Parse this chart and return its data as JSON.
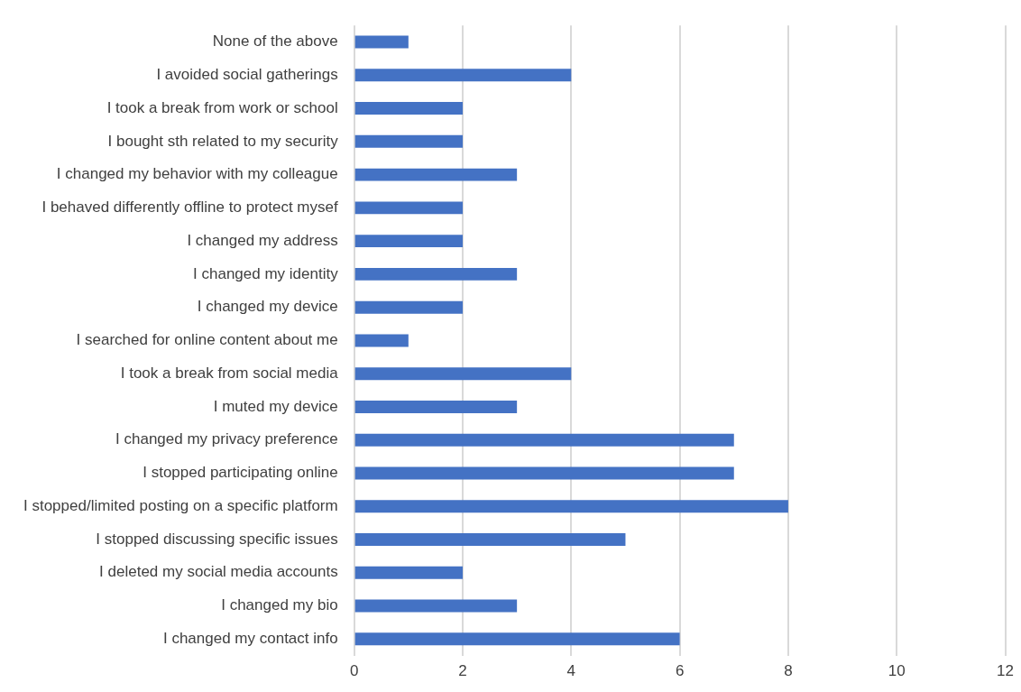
{
  "chart_data": {
    "type": "bar",
    "orientation": "horizontal",
    "categories": [
      "None of the above",
      "I avoided social gatherings",
      "I took a break from work or school",
      "I bought sth related to my security",
      "I changed my behavior with my colleague",
      "I behaved differently offline to protect mysef",
      "I changed my address",
      "I changed my identity",
      "I changed my device",
      "I searched for online content about me",
      "I took a break from social media",
      "I muted my device",
      "I changed my privacy preference",
      "I stopped participating online",
      "I stopped/limited posting on a specific platform",
      "I stopped discussing specific issues",
      "I deleted my social media accounts",
      "I changed my bio",
      "I changed my contact info"
    ],
    "values": [
      1,
      4,
      2,
      2,
      3,
      2,
      2,
      3,
      2,
      1,
      4,
      3,
      7,
      7,
      8,
      5,
      2,
      3,
      6
    ],
    "color": "#4472c4",
    "xlim": [
      0,
      12
    ],
    "xticks": [
      0,
      2,
      4,
      6,
      8,
      10,
      12
    ],
    "grid": "x"
  }
}
